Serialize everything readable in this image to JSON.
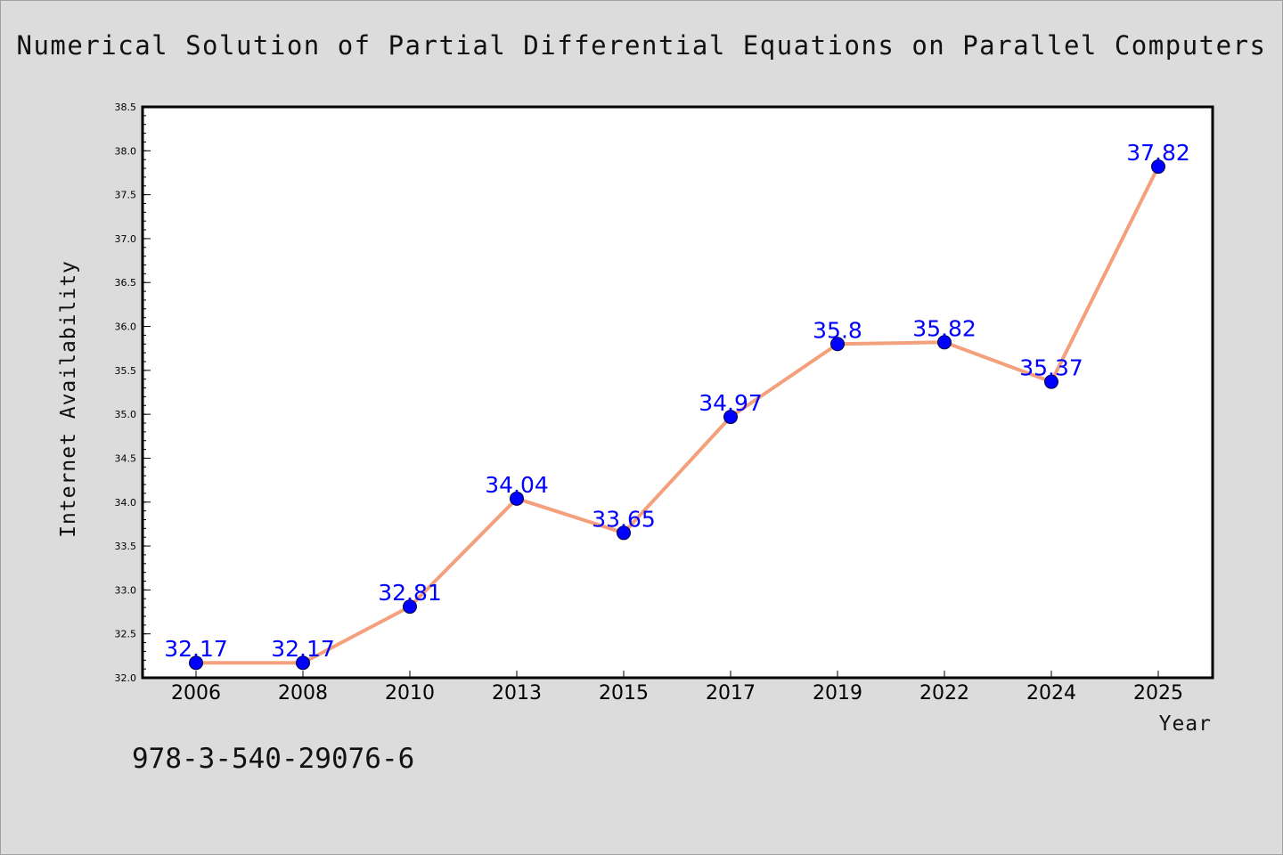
{
  "chart_data": {
    "type": "line",
    "title": "Numerical Solution of Partial Differential Equations on Parallel Computers",
    "xlabel": "Year",
    "ylabel": "Internet Availability",
    "categories": [
      "2006",
      "2008",
      "2010",
      "2013",
      "2015",
      "2017",
      "2019",
      "2022",
      "2024",
      "2025"
    ],
    "values": [
      32.17,
      32.17,
      32.81,
      34.04,
      33.65,
      34.97,
      35.8,
      35.82,
      35.37,
      37.82
    ],
    "data_labels": [
      "32.17",
      "32.17",
      "32.81",
      "34.04",
      "33.65",
      "34.97",
      "35.8",
      "35.82",
      "35.37",
      "37.82"
    ],
    "ylim": [
      32.0,
      38.5
    ],
    "yticks": [
      "32.0",
      "32.5",
      "33.0",
      "33.5",
      "34.0",
      "34.5",
      "35.0",
      "35.5",
      "36.0",
      "36.5",
      "37.0",
      "37.5",
      "38.0",
      "38.5"
    ],
    "grid": false,
    "line_color": "#f4a07c",
    "marker_color": "#0000ff",
    "label_color": "#0000ff"
  },
  "footer": {
    "isbn": "978-3-540-29076-6"
  }
}
